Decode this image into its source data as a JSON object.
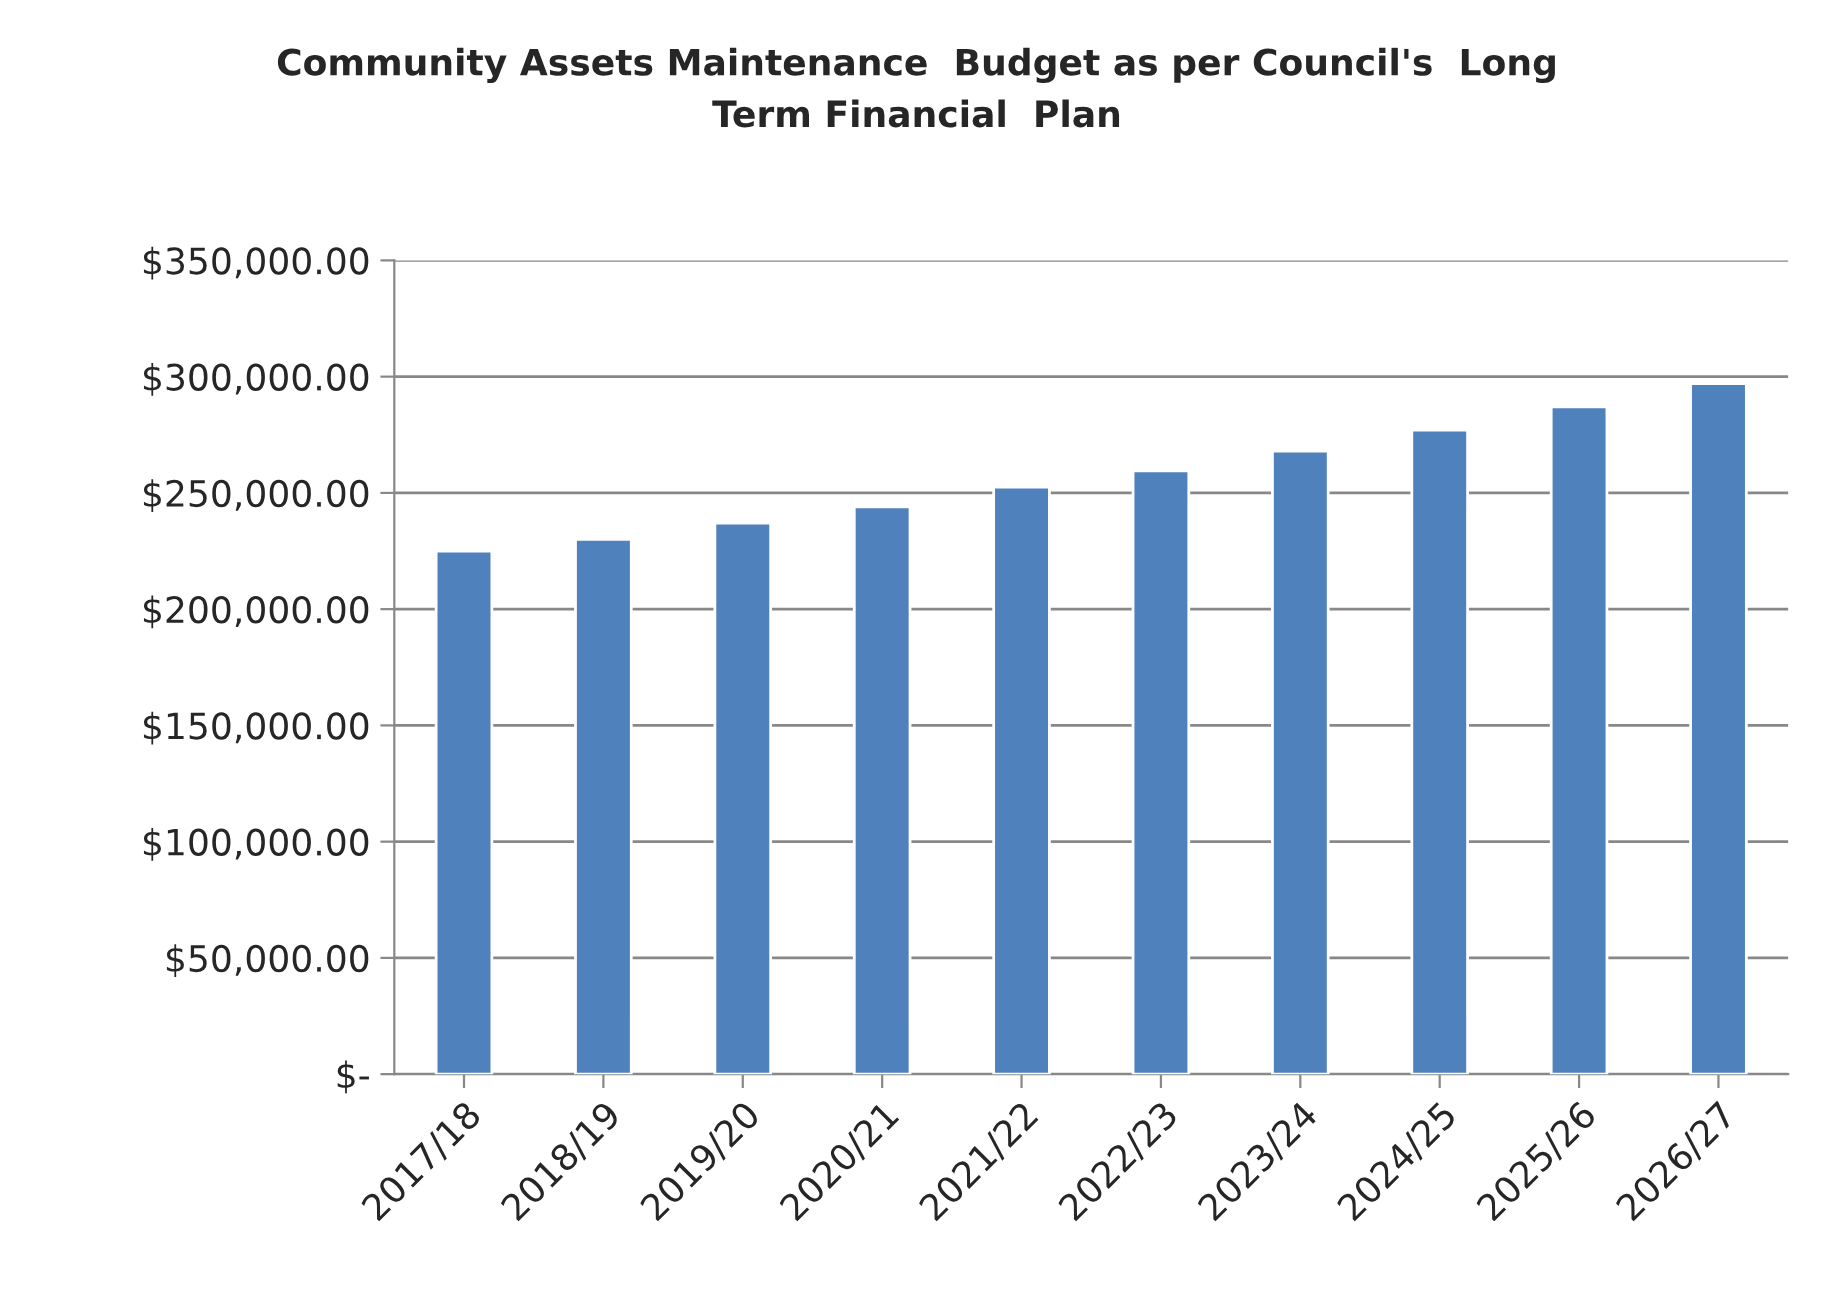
{
  "chart_data": {
    "type": "bar",
    "title": "Community Assets Maintenance  Budget as per Council's  Long\nTerm Financial  Plan",
    "categories": [
      "2017/18",
      "2018/19",
      "2019/20",
      "2020/21",
      "2021/22",
      "2022/23",
      "2023/24",
      "2024/25",
      "2025/26",
      "2026/27"
    ],
    "values": [
      225000,
      230000,
      237000,
      244000,
      252500,
      259500,
      268000,
      277000,
      287000,
      297000
    ],
    "color": "#4f81bd",
    "ylim": [
      0,
      350000
    ],
    "yticks": [
      {
        "value": 0,
        "label": "$-"
      },
      {
        "value": 50000,
        "label": "$50,000.00"
      },
      {
        "value": 100000,
        "label": "$100,000.00"
      },
      {
        "value": 150000,
        "label": "$150,000.00"
      },
      {
        "value": 200000,
        "label": "$200,000.00"
      },
      {
        "value": 250000,
        "label": "$250,000.00"
      },
      {
        "value": 300000,
        "label": "$300,000.00"
      },
      {
        "value": 350000,
        "label": "$350,000.00"
      }
    ],
    "grid": "y",
    "legend": false
  }
}
